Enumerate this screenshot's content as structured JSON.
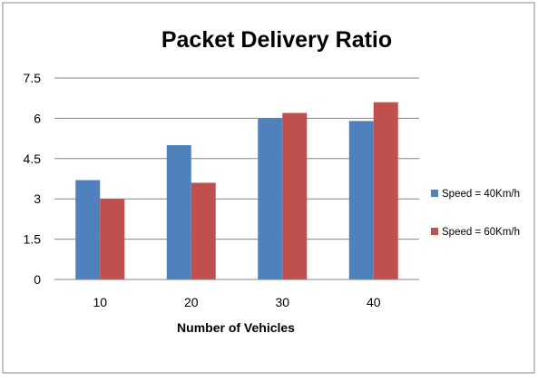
{
  "chart_data": {
    "type": "bar",
    "title": "Packet Delivery Ratio",
    "xlabel": "Number of Vehicles",
    "ylabel": "",
    "categories": [
      "10",
      "20",
      "30",
      "40"
    ],
    "series": [
      {
        "name": "Speed = 40Km/h",
        "color": "#4F81BD",
        "values": [
          3.7,
          5.0,
          6.0,
          5.9
        ]
      },
      {
        "name": "Speed = 60Km/h",
        "color": "#C0504D",
        "values": [
          3.0,
          3.6,
          6.2,
          6.6
        ]
      }
    ],
    "ylim": [
      0,
      7.5
    ],
    "yticks": [
      "0",
      "1.5",
      "3",
      "4.5",
      "6",
      "7.5"
    ],
    "grid": true,
    "legend": "right"
  }
}
